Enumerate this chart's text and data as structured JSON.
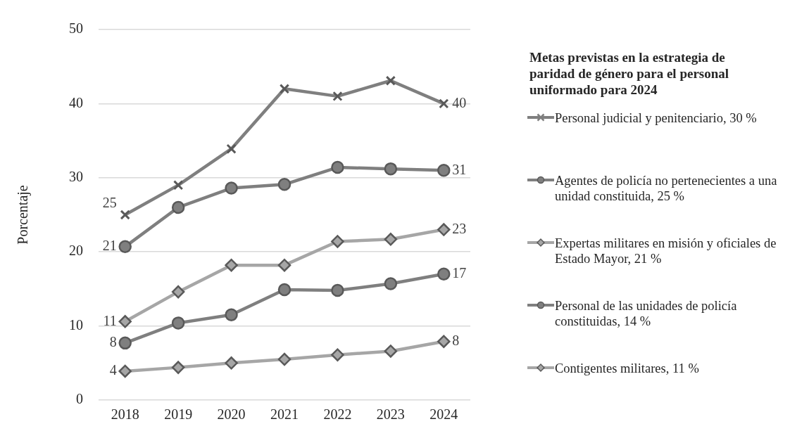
{
  "chart_data": {
    "type": "line",
    "ylabel": "Porcentaje",
    "legend_title": "Metas previstas en la estrategia de paridad de género para el personal uniformado para 2024",
    "categories": [
      "2018",
      "2019",
      "2020",
      "2021",
      "2022",
      "2023",
      "2024"
    ],
    "series": [
      {
        "name": "Personal judicial y penitenciario, 30 %",
        "color": "#7f7f7f",
        "marker": "cross",
        "values": [
          25,
          29,
          33.9,
          42,
          41,
          43.1,
          40
        ],
        "value_labels": [
          "25",
          null,
          null,
          null,
          null,
          null,
          "40"
        ]
      },
      {
        "name": "Agentes de policía no pertenecientes a una unidad constituida, 25 %",
        "color": "#7f7f7f",
        "marker": "circle",
        "values": [
          20.7,
          26,
          28.6,
          29.1,
          31.4,
          31.2,
          31
        ],
        "value_labels": [
          "21",
          null,
          null,
          null,
          null,
          null,
          "31"
        ]
      },
      {
        "name": "Expertas militares en misión y oficiales de Estado Mayor, 21 %",
        "color": "#a6a6a6",
        "marker": "diamond",
        "values": [
          10.6,
          14.6,
          18.2,
          18.2,
          21.4,
          21.7,
          23
        ],
        "value_labels": [
          "11",
          null,
          null,
          null,
          null,
          null,
          "23"
        ]
      },
      {
        "name": "Personal de las unidades de policía constituidas, 14 %",
        "color": "#7f7f7f",
        "marker": "circle",
        "values": [
          7.7,
          10.4,
          11.5,
          14.9,
          14.8,
          15.7,
          17
        ],
        "value_labels": [
          "8",
          null,
          null,
          null,
          null,
          null,
          "17"
        ]
      },
      {
        "name": "Contigentes militares, 11 %",
        "color": "#a6a6a6",
        "marker": "diamond",
        "values": [
          3.9,
          4.4,
          5,
          5.5,
          6.1,
          6.6,
          7.9
        ],
        "value_labels": [
          "4",
          null,
          null,
          null,
          null,
          null,
          "8"
        ]
      }
    ],
    "ylim": [
      0,
      50
    ],
    "yticks": [
      0,
      10,
      20,
      30,
      40,
      50
    ],
    "grid": "y",
    "legend": "right",
    "line_style": "solid"
  }
}
